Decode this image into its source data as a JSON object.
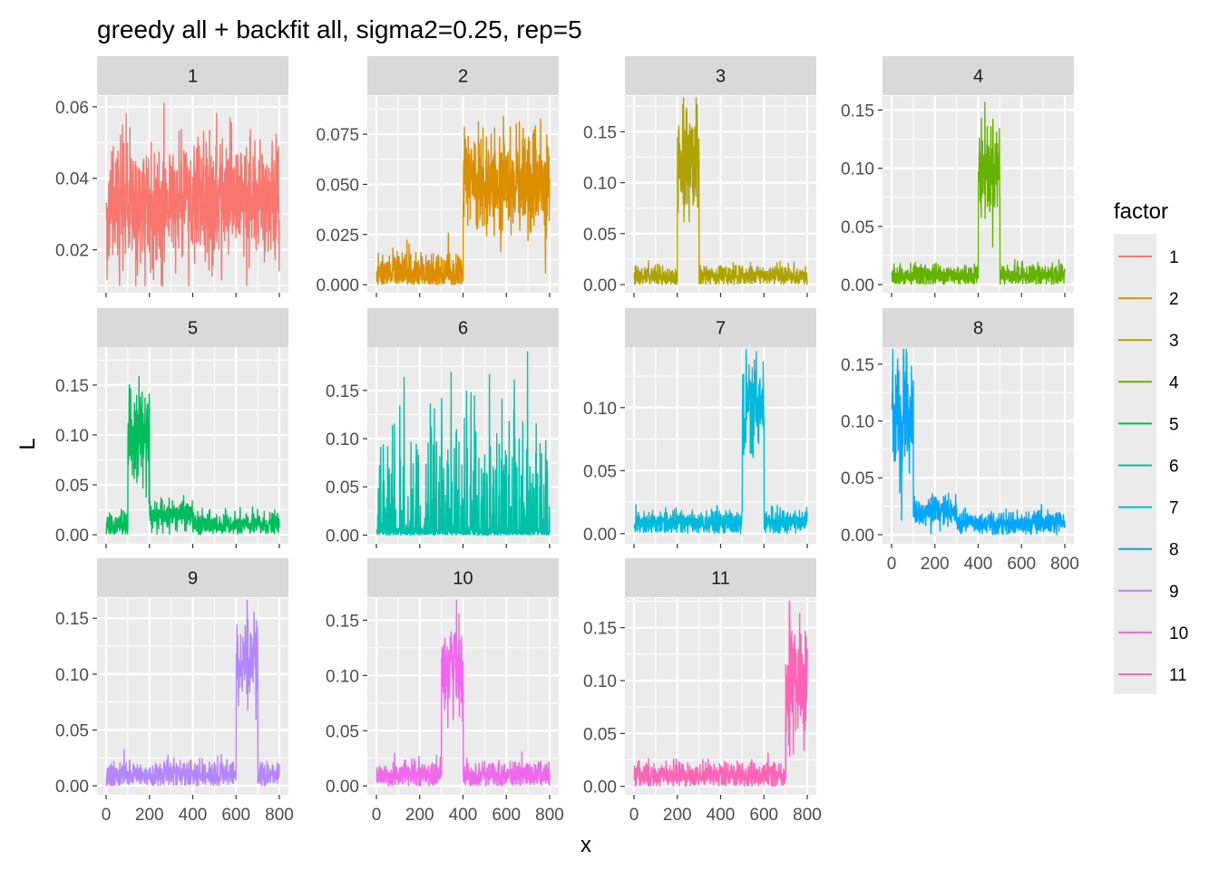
{
  "chart_data": {
    "type": "line",
    "title": "greedy all + backfit all, sigma2=0.25, rep=5",
    "xlabel": "x",
    "ylabel": "L",
    "grid": true,
    "legend": {
      "title": "factor",
      "placement": "right",
      "entries": [
        "1",
        "2",
        "3",
        "4",
        "5",
        "6",
        "7",
        "8",
        "9",
        "10",
        "11"
      ]
    },
    "x_ticks": [
      "0",
      "200",
      "400",
      "600",
      "800"
    ],
    "xlim": [
      0,
      800
    ],
    "colors": [
      "#F8766D",
      "#DB8E00",
      "#AEA200",
      "#64B200",
      "#00BD5C",
      "#00C1A7",
      "#00BADE",
      "#00A6FF",
      "#B385FF",
      "#EF67EB",
      "#FF63B6"
    ],
    "panels": [
      {
        "label": "1",
        "color": "#F8766D",
        "ylim": [
          0.008,
          0.063
        ],
        "y_ticks": [
          0.02,
          0.04,
          0.06
        ],
        "y_tick_labels": [
          "0.02",
          "0.04",
          "0.06"
        ],
        "pattern": "flat noisy signal across all x",
        "baseline": 0.033,
        "noise": 0.009,
        "blocks": []
      },
      {
        "label": "2",
        "color": "#DB8E00",
        "ylim": [
          -0.004,
          0.094
        ],
        "y_ticks": [
          0,
          0.025,
          0.05,
          0.075
        ],
        "y_tick_labels": [
          "0.000",
          "0.025",
          "0.050",
          "0.075"
        ],
        "pattern": "low for x<400, elevated for x>=400",
        "baseline": 0.005,
        "noise": 0.006,
        "blocks": [
          {
            "start": 400,
            "end": 800,
            "level": 0.05,
            "noise": 0.013
          }
        ]
      },
      {
        "label": "3",
        "color": "#AEA200",
        "ylim": [
          -0.008,
          0.185
        ],
        "y_ticks": [
          0,
          0.05,
          0.1,
          0.15
        ],
        "y_tick_labels": [
          "0.00",
          "0.05",
          "0.10",
          "0.15"
        ],
        "pattern": "peak block around x=200-300",
        "baseline": 0.008,
        "noise": 0.005,
        "blocks": [
          {
            "start": 200,
            "end": 300,
            "level": 0.12,
            "noise": 0.03
          }
        ]
      },
      {
        "label": "4",
        "color": "#64B200",
        "ylim": [
          -0.007,
          0.162
        ],
        "y_ticks": [
          0,
          0.05,
          0.1,
          0.15
        ],
        "y_tick_labels": [
          "0.00",
          "0.05",
          "0.10",
          "0.15"
        ],
        "pattern": "peak block around x=400-500",
        "baseline": 0.008,
        "noise": 0.005,
        "blocks": [
          {
            "start": 400,
            "end": 500,
            "level": 0.1,
            "noise": 0.02
          }
        ]
      },
      {
        "label": "5",
        "color": "#00BD5C",
        "ylim": [
          -0.009,
          0.188
        ],
        "y_ticks": [
          0,
          0.05,
          0.1,
          0.15
        ],
        "y_tick_labels": [
          "0.00",
          "0.05",
          "0.10",
          "0.15"
        ],
        "pattern": "peak block around x=100-200",
        "baseline": 0.01,
        "noise": 0.006,
        "blocks": [
          {
            "start": 100,
            "end": 200,
            "level": 0.1,
            "noise": 0.025
          },
          {
            "start": 200,
            "end": 400,
            "level": 0.02,
            "noise": 0.007
          }
        ]
      },
      {
        "label": "6",
        "color": "#00C1A7",
        "ylim": [
          -0.009,
          0.195
        ],
        "y_ticks": [
          0,
          0.05,
          0.1,
          0.15
        ],
        "y_tick_labels": [
          "0.00",
          "0.05",
          "0.10",
          "0.15"
        ],
        "pattern": "sparse spikes across all x",
        "baseline": 0.003,
        "noise": 0.003,
        "blocks": []
      },
      {
        "label": "7",
        "color": "#00BADE",
        "ylim": [
          -0.008,
          0.148
        ],
        "y_ticks": [
          0,
          0.05,
          0.1
        ],
        "y_tick_labels": [
          "0.00",
          "0.05",
          "0.10"
        ],
        "pattern": "peak block around x=500-600",
        "baseline": 0.009,
        "noise": 0.005,
        "blocks": [
          {
            "start": 500,
            "end": 600,
            "level": 0.1,
            "noise": 0.02
          }
        ]
      },
      {
        "label": "8",
        "color": "#00A6FF",
        "ylim": [
          -0.008,
          0.165
        ],
        "y_ticks": [
          0,
          0.05,
          0.1,
          0.15
        ],
        "y_tick_labels": [
          "0.00",
          "0.05",
          "0.10",
          "0.15"
        ],
        "pattern": "peak block around x=0-100",
        "baseline": 0.01,
        "noise": 0.005,
        "blocks": [
          {
            "start": 0,
            "end": 100,
            "level": 0.1,
            "noise": 0.025
          },
          {
            "start": 100,
            "end": 300,
            "level": 0.02,
            "noise": 0.007
          }
        ]
      },
      {
        "label": "9",
        "color": "#B385FF",
        "ylim": [
          -0.008,
          0.168
        ],
        "y_ticks": [
          0,
          0.05,
          0.1,
          0.15
        ],
        "y_tick_labels": [
          "0.00",
          "0.05",
          "0.10",
          "0.15"
        ],
        "pattern": "peak block around x=600-700",
        "baseline": 0.01,
        "noise": 0.006,
        "blocks": [
          {
            "start": 600,
            "end": 700,
            "level": 0.11,
            "noise": 0.022
          }
        ]
      },
      {
        "label": "10",
        "color": "#EF67EB",
        "ylim": [
          -0.008,
          0.17
        ],
        "y_ticks": [
          0,
          0.05,
          0.1,
          0.15
        ],
        "y_tick_labels": [
          "0.00",
          "0.05",
          "0.10",
          "0.15"
        ],
        "pattern": "peak block around x=300-400",
        "baseline": 0.01,
        "noise": 0.006,
        "blocks": [
          {
            "start": 300,
            "end": 400,
            "level": 0.11,
            "noise": 0.022
          }
        ]
      },
      {
        "label": "11",
        "color": "#FF63B6",
        "ylim": [
          -0.008,
          0.178
        ],
        "y_ticks": [
          0,
          0.05,
          0.1,
          0.15
        ],
        "y_tick_labels": [
          "0.00",
          "0.05",
          "0.10",
          "0.15"
        ],
        "pattern": "peak block around x=700-800",
        "baseline": 0.01,
        "noise": 0.006,
        "blocks": [
          {
            "start": 700,
            "end": 800,
            "level": 0.1,
            "noise": 0.03
          }
        ]
      }
    ]
  }
}
